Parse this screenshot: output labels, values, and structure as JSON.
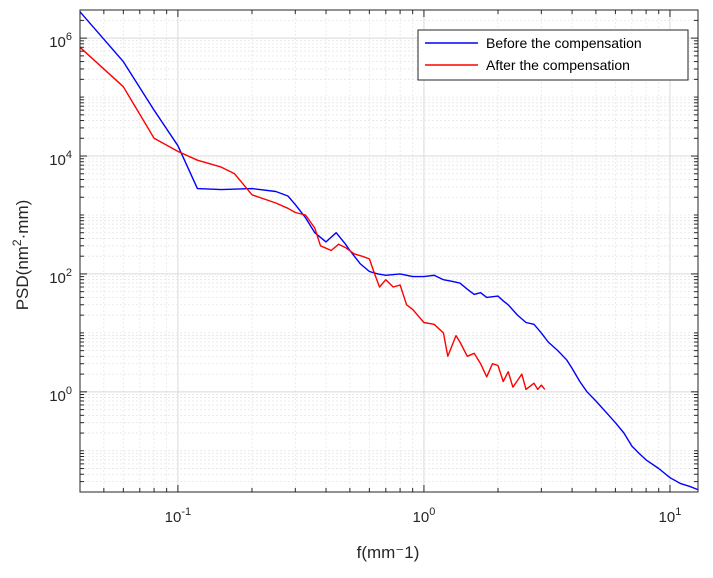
{
  "chart_data": {
    "type": "line",
    "xscale": "log",
    "yscale": "log",
    "xlim": [
      0.04,
      13
    ],
    "ylim": [
      0.02,
      3000000
    ],
    "xticks": [
      {
        "value": 0.1,
        "base": "10",
        "exp": "-1"
      },
      {
        "value": 1,
        "base": "10",
        "exp": "0"
      },
      {
        "value": 10,
        "base": "10",
        "exp": "1"
      }
    ],
    "yticks": [
      {
        "value": 1,
        "base": "10",
        "exp": "0"
      },
      {
        "value": 100,
        "base": "10",
        "exp": "2"
      },
      {
        "value": 10000,
        "base": "10",
        "exp": "4"
      },
      {
        "value": 1000000,
        "base": "10",
        "exp": "6"
      }
    ],
    "xlabel": "f(mm⁻1)",
    "ylabel_base": "PSD(nm",
    "ylabel_sup": "2",
    "ylabel_tail": "·mm)",
    "grid": true,
    "minor_grid": true,
    "legend_position": "top-right",
    "series": [
      {
        "name": "Before the compensation",
        "color": "#0000ff",
        "points": [
          [
            0.04,
            2800000
          ],
          [
            0.06,
            400000
          ],
          [
            0.08,
            60000
          ],
          [
            0.1,
            15000
          ],
          [
            0.12,
            2800
          ],
          [
            0.15,
            2700
          ],
          [
            0.2,
            2800
          ],
          [
            0.25,
            2500
          ],
          [
            0.28,
            2100
          ],
          [
            0.3,
            1500
          ],
          [
            0.33,
            900
          ],
          [
            0.36,
            500
          ],
          [
            0.4,
            350
          ],
          [
            0.44,
            500
          ],
          [
            0.48,
            320
          ],
          [
            0.5,
            250
          ],
          [
            0.55,
            150
          ],
          [
            0.6,
            110
          ],
          [
            0.65,
            100
          ],
          [
            0.7,
            95
          ],
          [
            0.8,
            100
          ],
          [
            0.9,
            90
          ],
          [
            1.0,
            90
          ],
          [
            1.1,
            95
          ],
          [
            1.2,
            80
          ],
          [
            1.3,
            75
          ],
          [
            1.4,
            70
          ],
          [
            1.5,
            55
          ],
          [
            1.6,
            45
          ],
          [
            1.7,
            48
          ],
          [
            1.8,
            40
          ],
          [
            2.0,
            42
          ],
          [
            2.1,
            35
          ],
          [
            2.2,
            30
          ],
          [
            2.4,
            20
          ],
          [
            2.6,
            15
          ],
          [
            2.8,
            14
          ],
          [
            3.0,
            10
          ],
          [
            3.2,
            7
          ],
          [
            3.5,
            5
          ],
          [
            3.8,
            3.5
          ],
          [
            4.0,
            2.5
          ],
          [
            4.3,
            1.5
          ],
          [
            4.6,
            1.0
          ],
          [
            5.0,
            0.7
          ],
          [
            5.5,
            0.45
          ],
          [
            6.0,
            0.3
          ],
          [
            6.5,
            0.2
          ],
          [
            7.0,
            0.12
          ],
          [
            7.5,
            0.09
          ],
          [
            8.0,
            0.07
          ],
          [
            9.0,
            0.05
          ],
          [
            10.0,
            0.035
          ],
          [
            11.0,
            0.028
          ],
          [
            12.0,
            0.025
          ],
          [
            13.0,
            0.022
          ]
        ]
      },
      {
        "name": "After the compensation",
        "color": "#ff0000",
        "points": [
          [
            0.04,
            700000
          ],
          [
            0.06,
            150000
          ],
          [
            0.08,
            20000
          ],
          [
            0.1,
            12000
          ],
          [
            0.12,
            8500
          ],
          [
            0.15,
            6500
          ],
          [
            0.17,
            5000
          ],
          [
            0.2,
            2200
          ],
          [
            0.25,
            1600
          ],
          [
            0.28,
            1300
          ],
          [
            0.3,
            1100
          ],
          [
            0.33,
            1000
          ],
          [
            0.36,
            600
          ],
          [
            0.38,
            300
          ],
          [
            0.42,
            250
          ],
          [
            0.45,
            320
          ],
          [
            0.48,
            280
          ],
          [
            0.52,
            220
          ],
          [
            0.56,
            200
          ],
          [
            0.6,
            180
          ],
          [
            0.63,
            100
          ],
          [
            0.66,
            60
          ],
          [
            0.7,
            80
          ],
          [
            0.75,
            60
          ],
          [
            0.8,
            65
          ],
          [
            0.85,
            30
          ],
          [
            0.9,
            25
          ],
          [
            1.0,
            15
          ],
          [
            1.1,
            14
          ],
          [
            1.2,
            10
          ],
          [
            1.25,
            4
          ],
          [
            1.35,
            9
          ],
          [
            1.4,
            7
          ],
          [
            1.5,
            4
          ],
          [
            1.6,
            4.5
          ],
          [
            1.7,
            3
          ],
          [
            1.8,
            1.8
          ],
          [
            1.9,
            3
          ],
          [
            2.0,
            2.8
          ],
          [
            2.1,
            1.5
          ],
          [
            2.2,
            2.2
          ],
          [
            2.3,
            1.2
          ],
          [
            2.5,
            2
          ],
          [
            2.6,
            1.1
          ],
          [
            2.8,
            1.4
          ],
          [
            2.9,
            1.1
          ],
          [
            3.0,
            1.3
          ],
          [
            3.1,
            1.1
          ]
        ]
      }
    ]
  }
}
